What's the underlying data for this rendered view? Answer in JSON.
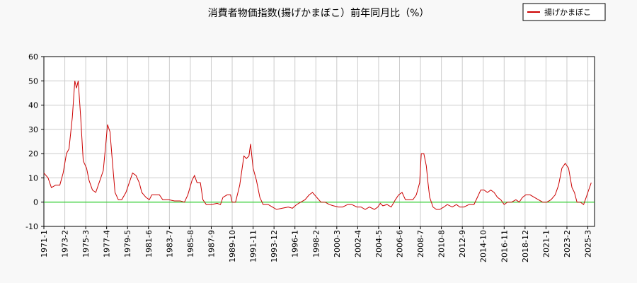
{
  "chart_data": {
    "type": "line",
    "title": "消費者物価指数(揚げかまぼこ）前年同月比（%）",
    "x": [
      "1971-1",
      "1971-6",
      "1971-10",
      "1972-3",
      "1972-8",
      "1972-12",
      "1973-4",
      "1973-7",
      "1973-11",
      "1974-2",
      "1974-4",
      "1974-6",
      "1974-9",
      "1974-12",
      "1975-4",
      "1975-7",
      "1975-11",
      "1976-3",
      "1976-8",
      "1976-12",
      "1977-3",
      "1977-5",
      "1977-8",
      "1977-11",
      "1978-2",
      "1978-6",
      "1978-10",
      "1979-3",
      "1979-7",
      "1979-11",
      "1980-3",
      "1980-7",
      "1980-10",
      "1981-3",
      "1981-7",
      "1981-10",
      "1982-3",
      "1982-7",
      "1982-11",
      "1983-6",
      "1984-1",
      "1984-8",
      "1985-1",
      "1985-5",
      "1985-10",
      "1986-1",
      "1986-4",
      "1986-8",
      "1986-11",
      "1987-3",
      "1987-9",
      "1988-4",
      "1988-8",
      "1988-11",
      "1989-4",
      "1989-8",
      "1989-10",
      "1990-2",
      "1990-7",
      "1990-12",
      "1991-3",
      "1991-6",
      "1991-8",
      "1991-11",
      "1992-3",
      "1992-7",
      "1992-11",
      "1993-5",
      "1993-10",
      "1994-3",
      "1994-10",
      "1995-5",
      "1995-10",
      "1996-3",
      "1996-8",
      "1997-1",
      "1997-6",
      "1997-10",
      "1998-3",
      "1998-8",
      "1999-1",
      "1999-6",
      "1999-11",
      "2000-5",
      "2000-10",
      "2001-4",
      "2001-9",
      "2002-3",
      "2002-8",
      "2003-1",
      "2003-6",
      "2003-12",
      "2004-4",
      "2004-7",
      "2004-10",
      "2005-3",
      "2005-8",
      "2006-1",
      "2006-5",
      "2006-9",
      "2007-1",
      "2007-5",
      "2007-10",
      "2008-2",
      "2008-6",
      "2008-8",
      "2008-11",
      "2009-2",
      "2009-4",
      "2009-6",
      "2009-10",
      "2010-2",
      "2010-6",
      "2010-11",
      "2011-3",
      "2011-9",
      "2012-2",
      "2012-6",
      "2012-11",
      "2013-5",
      "2013-11",
      "2014-3",
      "2014-7",
      "2014-11",
      "2015-3",
      "2015-7",
      "2015-11",
      "2016-3",
      "2016-7",
      "2016-11",
      "2017-3",
      "2017-8",
      "2018-1",
      "2018-5",
      "2018-9",
      "2019-1",
      "2019-6",
      "2019-11",
      "2020-4",
      "2020-9",
      "2021-2",
      "2021-7",
      "2021-12",
      "2022-4",
      "2022-8",
      "2022-12",
      "2023-4",
      "2023-8",
      "2023-11",
      "2024-2",
      "2024-6",
      "2024-10",
      "2025-1",
      "2025-4",
      "2025-7"
    ],
    "series": [
      {
        "name": "揚げかまぼこ",
        "color": "#cc0000",
        "values": [
          12,
          10,
          6,
          7,
          7,
          12,
          20,
          22,
          35,
          50,
          47,
          50,
          35,
          17,
          14,
          9,
          5,
          4,
          9,
          13,
          24,
          32,
          29,
          16,
          4,
          1,
          1,
          4,
          8,
          12,
          11,
          8,
          4,
          2,
          1,
          3,
          3,
          3,
          1,
          1,
          0.5,
          0.5,
          0,
          3,
          9,
          11,
          8,
          8,
          1,
          -1,
          -1,
          -0.5,
          -1,
          2,
          3,
          3,
          0,
          0,
          7,
          19,
          18,
          19,
          24,
          14,
          9,
          2,
          -1,
          -1,
          -2,
          -3,
          -2.5,
          -2,
          -2.5,
          -1,
          0,
          1,
          3,
          4,
          2,
          0,
          0,
          -1,
          -1.5,
          -2,
          -2,
          -1,
          -1,
          -2,
          -2,
          -3,
          -2,
          -3,
          -2,
          -0.5,
          -1.5,
          -1,
          -2,
          1,
          3,
          4,
          1,
          1,
          1,
          3,
          8,
          20,
          20,
          15,
          8,
          2,
          -2,
          -3,
          -3,
          -2,
          -1,
          -2,
          -1,
          -2,
          -2,
          -1,
          -1,
          2,
          5,
          5,
          4,
          5,
          4,
          2,
          1,
          -1,
          0,
          0,
          1,
          0,
          2,
          3,
          3,
          2,
          1,
          0,
          0,
          1,
          3,
          7,
          14,
          16,
          14,
          6,
          4,
          0,
          0,
          -1,
          2,
          5,
          8
        ]
      }
    ],
    "xlim": [
      "1971-1",
      "2025-11"
    ],
    "xticks": [
      "1971-1",
      "1973-2",
      "1975-3",
      "1977-4",
      "1979-5",
      "1981-6",
      "1983-7",
      "1985-8",
      "1987-9",
      "1989-10",
      "1991-11",
      "1993-12",
      "1996-1",
      "1998-2",
      "2000-3",
      "2002-4",
      "2004-5",
      "2006-6",
      "2008-7",
      "2010-8",
      "2012-9",
      "2014-10",
      "2016-11",
      "2018-12",
      "2021-1",
      "2023-2",
      "2025-3"
    ],
    "ylim": [
      -10,
      60
    ],
    "yticks": [
      -10,
      0,
      10,
      20,
      30,
      40,
      50,
      60
    ],
    "grid": true,
    "legend": "top-right",
    "reference_line": {
      "value": 0,
      "color": "#00cc00"
    }
  }
}
